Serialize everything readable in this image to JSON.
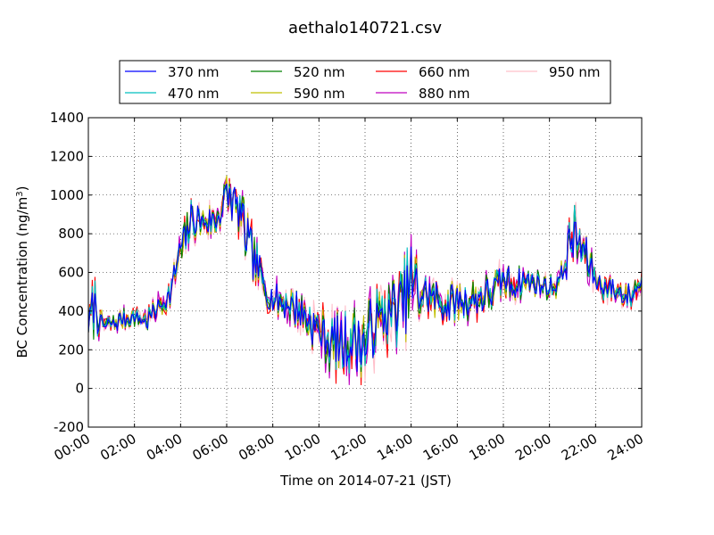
{
  "chart_data": {
    "type": "line",
    "title": "aethalo140721.csv",
    "xlabel": "Time on 2014-07-21 (JST)",
    "ylabel": "BC Concentration (ng/m³)",
    "ylabel_parts": {
      "main": "BC Concentration (ng/m",
      "sup": "3",
      "tail": ")"
    },
    "x_unit": "hour of day",
    "xlim": [
      0,
      24
    ],
    "ylim": [
      -200,
      1400
    ],
    "x_tick_labels": [
      "00:00",
      "02:00",
      "04:00",
      "06:00",
      "08:00",
      "10:00",
      "12:00",
      "14:00",
      "16:00",
      "18:00",
      "20:00",
      "22:00",
      "24:00"
    ],
    "x_tick_values": [
      0,
      2,
      4,
      6,
      8,
      10,
      12,
      14,
      16,
      18,
      20,
      22,
      24
    ],
    "y_ticks": [
      -200,
      0,
      200,
      400,
      600,
      800,
      1000,
      1200,
      1400
    ],
    "grid": true,
    "legend_placement": "top",
    "series": [
      {
        "name": "370 nm",
        "color": "#0000ff"
      },
      {
        "name": "470 nm",
        "color": "#00bfbf"
      },
      {
        "name": "520 nm",
        "color": "#008000"
      },
      {
        "name": "590 nm",
        "color": "#bfbf00"
      },
      {
        "name": "660 nm",
        "color": "#ff0000"
      },
      {
        "name": "880 nm",
        "color": "#bf00bf"
      },
      {
        "name": "950 nm",
        "color": "#ffc0cb"
      }
    ],
    "approx_profile": {
      "x": [
        0,
        0.25,
        0.5,
        1,
        1.5,
        2,
        2.5,
        3,
        3.5,
        4,
        4.5,
        5,
        5.5,
        6,
        6.5,
        7,
        7.5,
        8,
        8.5,
        9,
        9.5,
        10,
        10.5,
        11,
        11.5,
        12,
        12.5,
        13,
        13.5,
        14,
        14.5,
        15,
        15.5,
        16,
        16.5,
        17,
        17.5,
        18,
        18.5,
        19,
        19.5,
        20,
        20.5,
        21,
        21.5,
        22,
        22.5,
        23,
        23.5,
        24
      ],
      "y": [
        320,
        450,
        330,
        330,
        360,
        370,
        350,
        420,
        480,
        700,
        880,
        860,
        860,
        1000,
        940,
        720,
        560,
        470,
        440,
        420,
        360,
        300,
        240,
        220,
        260,
        230,
        350,
        380,
        420,
        550,
        480,
        470,
        430,
        450,
        450,
        470,
        500,
        560,
        540,
        560,
        540,
        520,
        560,
        810,
        700,
        560,
        520,
        500,
        470,
        560
      ],
      "variability": [
        60,
        200,
        70,
        60,
        60,
        60,
        70,
        70,
        80,
        120,
        120,
        100,
        110,
        130,
        150,
        180,
        120,
        100,
        110,
        120,
        130,
        150,
        170,
        180,
        200,
        220,
        200,
        200,
        200,
        250,
        130,
        120,
        110,
        120,
        110,
        120,
        120,
        100,
        100,
        80,
        80,
        70,
        90,
        180,
        140,
        90,
        80,
        80,
        80,
        80
      ]
    }
  }
}
